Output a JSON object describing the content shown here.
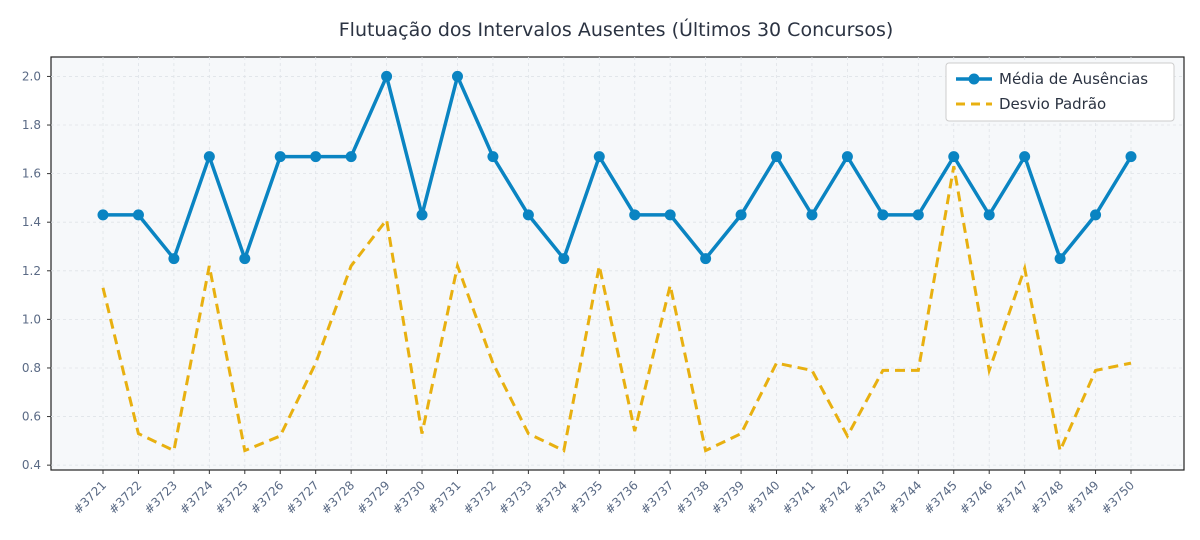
{
  "chart_data": {
    "type": "line",
    "title": "Flutuação dos Intervalos Ausentes (Últimos 30 Concursos)",
    "xlabel": "",
    "ylabel": "",
    "categories": [
      "#3721",
      "#3722",
      "#3723",
      "#3724",
      "#3725",
      "#3726",
      "#3727",
      "#3728",
      "#3729",
      "#3730",
      "#3731",
      "#3732",
      "#3733",
      "#3734",
      "#3735",
      "#3736",
      "#3737",
      "#3738",
      "#3739",
      "#3740",
      "#3741",
      "#3742",
      "#3743",
      "#3744",
      "#3745",
      "#3746",
      "#3747",
      "#3748",
      "#3749",
      "#3750"
    ],
    "ylim": [
      0.38,
      2.08
    ],
    "yticks": [
      "0.4",
      "0.6",
      "0.8",
      "1.0",
      "1.2",
      "1.4",
      "1.6",
      "1.8",
      "2.0"
    ],
    "grid": true,
    "legend_position": "top-right",
    "series": [
      {
        "name": "Média de Ausências",
        "color": "#0a84c2",
        "style": "solid-markers",
        "values": [
          1.43,
          1.43,
          1.25,
          1.67,
          1.25,
          1.67,
          1.67,
          1.67,
          2.0,
          1.43,
          2.0,
          1.67,
          1.43,
          1.25,
          1.67,
          1.43,
          1.43,
          1.25,
          1.43,
          1.67,
          1.43,
          1.67,
          1.43,
          1.43,
          1.67,
          1.43,
          1.67,
          1.25,
          1.43,
          1.67
        ]
      },
      {
        "name": "Desvio Padrão",
        "color": "#e8b010",
        "style": "dashed",
        "values": [
          1.13,
          0.53,
          0.46,
          1.22,
          0.46,
          0.52,
          0.82,
          1.22,
          1.41,
          0.53,
          1.22,
          0.82,
          0.53,
          0.46,
          1.22,
          0.54,
          1.14,
          0.46,
          0.53,
          0.82,
          0.79,
          0.52,
          0.79,
          0.79,
          1.63,
          0.79,
          1.21,
          0.46,
          0.79,
          0.82
        ]
      }
    ]
  }
}
